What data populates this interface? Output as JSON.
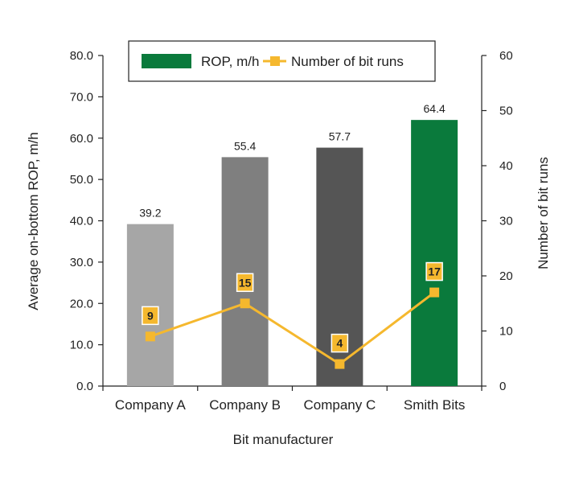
{
  "chart_data": {
    "type": "bar",
    "categories": [
      "Company A",
      "Company B",
      "Company C",
      "Smith Bits"
    ],
    "series": [
      {
        "name": "ROP, m/h",
        "type": "bar",
        "axis": "left",
        "values": [
          39.2,
          55.4,
          57.7,
          64.4
        ],
        "value_labels": [
          "39.2",
          "55.4",
          "57.7",
          "64.4"
        ]
      },
      {
        "name": "Number of bit runs",
        "type": "line",
        "axis": "right",
        "values": [
          9,
          15,
          4,
          17
        ],
        "value_labels": [
          "9",
          "15",
          "4",
          "17"
        ]
      }
    ],
    "xlabel": "Bit manufacturer",
    "ylabel": "Average on-bottom ROP, m/h",
    "y2label": "Number of bit runs",
    "ylim": [
      0,
      80
    ],
    "y2lim": [
      0,
      60
    ],
    "yticks": [
      "0.0",
      "10.0",
      "20.0",
      "30.0",
      "40.0",
      "50.0",
      "60.0",
      "70.0",
      "80.0"
    ],
    "y2ticks": [
      "0",
      "10",
      "20",
      "30",
      "40",
      "50",
      "60"
    ],
    "grid": false,
    "legend_position": "top",
    "colors": {
      "bars": [
        "#a6a6a6",
        "#7f7f7f",
        "#555555",
        "#0a7a3c"
      ],
      "line": "#f5b82e",
      "axis": "#222222"
    }
  }
}
